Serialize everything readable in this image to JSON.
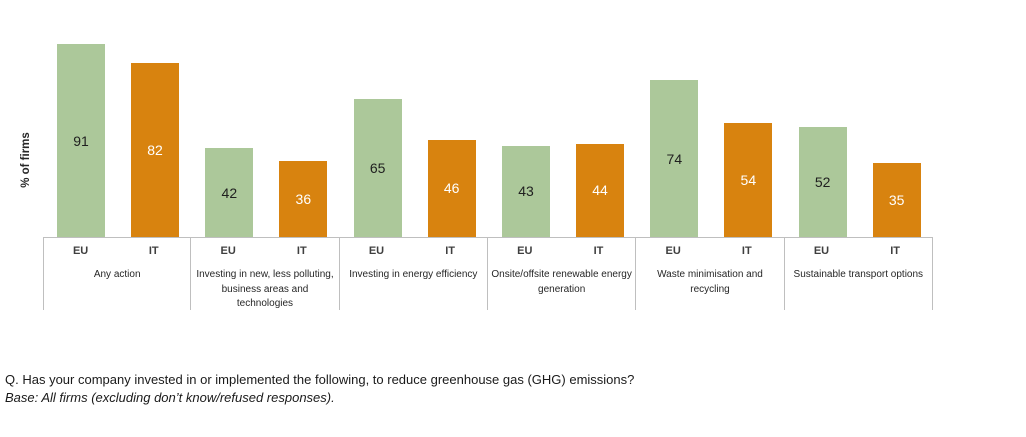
{
  "chart_data": {
    "type": "bar",
    "title": "",
    "xlabel": "",
    "ylabel": "% of firms",
    "ylim": [
      0,
      100
    ],
    "grid": false,
    "legend_position": "none",
    "value_labels": "centered-inside-bars",
    "categories": [
      "Any action",
      "Investing in new, less polluting, business areas and technologies",
      "Investing in energy efficiency",
      "Onsite/offsite renewable energy generation",
      "Waste minimisation and recycling",
      "Sustainable transport options"
    ],
    "series": [
      {
        "name": "EU",
        "color": "#ACC89A",
        "label_color": "#1f1f1f",
        "values": [
          91,
          42,
          65,
          43,
          74,
          52
        ]
      },
      {
        "name": "IT",
        "color": "#D8830F",
        "label_color": "#ffffff",
        "values": [
          82,
          36,
          46,
          44,
          54,
          35
        ]
      }
    ]
  },
  "footnote": {
    "question": "Q. Has your company invested in or implemented the following, to reduce greenhouse gas (GHG) emissions?",
    "base": "Base: All firms (excluding don’t know/refused responses)."
  },
  "colors": {
    "eu_bar": "#ACC89A",
    "it_bar": "#D8830F",
    "axis_border": "#BFBFBF",
    "text": "#262626"
  }
}
